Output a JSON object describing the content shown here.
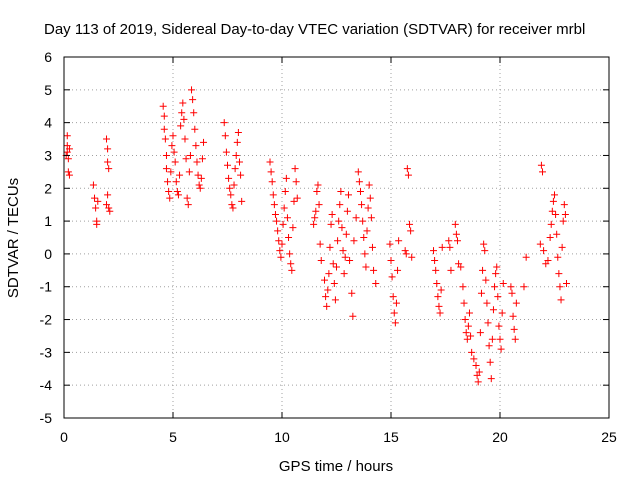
{
  "chart_data": {
    "type": "scatter",
    "title": "Day 113 of 2019, Sidereal Day-to-day VTEC variation (SDTVAR) for receiver mrbl",
    "xlabel": "GPS time / hours",
    "ylabel": "SDTVAR / TECUs",
    "xlim": [
      0,
      25
    ],
    "ylim": [
      -5,
      6
    ],
    "xticks": [
      "0",
      "5",
      "10",
      "15",
      "20",
      "25"
    ],
    "yticks": [
      "-5",
      "-4",
      "-3",
      "-2",
      "-1",
      "0",
      "1",
      "2",
      "3",
      "4",
      "5",
      "6"
    ],
    "grid": true,
    "marker": "+",
    "colors": {
      "points": "#ff0000",
      "frame": "#000000",
      "grid": "#a0a0a0"
    },
    "series": [
      {
        "name": "SDTVAR",
        "points": [
          [
            0.15,
            3.6
          ],
          [
            0.15,
            3.3
          ],
          [
            0.15,
            3.1
          ],
          [
            0.2,
            2.9
          ],
          [
            0.2,
            2.5
          ],
          [
            0.25,
            3.2
          ],
          [
            0.25,
            2.4
          ],
          [
            0.1,
            3.0
          ],
          [
            1.35,
            2.1
          ],
          [
            1.4,
            1.7
          ],
          [
            1.45,
            1.4
          ],
          [
            1.5,
            1.0
          ],
          [
            1.5,
            0.9
          ],
          [
            1.55,
            1.6
          ],
          [
            1.95,
            3.5
          ],
          [
            2.0,
            3.2
          ],
          [
            2.0,
            2.8
          ],
          [
            2.05,
            2.6
          ],
          [
            2.0,
            1.8
          ],
          [
            2.05,
            1.4
          ],
          [
            2.1,
            1.3
          ],
          [
            1.95,
            1.5
          ],
          [
            4.55,
            4.5
          ],
          [
            4.6,
            4.2
          ],
          [
            4.6,
            3.8
          ],
          [
            4.65,
            3.5
          ],
          [
            4.7,
            3.0
          ],
          [
            4.7,
            2.6
          ],
          [
            4.75,
            2.2
          ],
          [
            4.8,
            1.9
          ],
          [
            4.85,
            1.7
          ],
          [
            4.9,
            2.5
          ],
          [
            4.95,
            3.3
          ],
          [
            5.0,
            3.6
          ],
          [
            5.05,
            3.1
          ],
          [
            5.1,
            2.8
          ],
          [
            5.15,
            2.2
          ],
          [
            5.2,
            1.9
          ],
          [
            5.25,
            1.8
          ],
          [
            5.3,
            2.4
          ],
          [
            5.35,
            3.9
          ],
          [
            5.4,
            4.3
          ],
          [
            5.45,
            4.6
          ],
          [
            5.5,
            4.1
          ],
          [
            5.55,
            3.5
          ],
          [
            5.6,
            2.9
          ],
          [
            5.65,
            1.7
          ],
          [
            5.7,
            1.5
          ],
          [
            5.75,
            2.5
          ],
          [
            5.8,
            3.0
          ],
          [
            5.85,
            5.0
          ],
          [
            5.9,
            4.7
          ],
          [
            5.95,
            4.3
          ],
          [
            6.0,
            3.8
          ],
          [
            6.05,
            3.3
          ],
          [
            6.1,
            2.8
          ],
          [
            6.15,
            2.4
          ],
          [
            6.2,
            2.1
          ],
          [
            6.25,
            2.0
          ],
          [
            6.3,
            2.3
          ],
          [
            6.35,
            2.9
          ],
          [
            6.4,
            3.4
          ],
          [
            7.35,
            4.0
          ],
          [
            7.4,
            3.6
          ],
          [
            7.45,
            3.1
          ],
          [
            7.5,
            2.7
          ],
          [
            7.55,
            2.3
          ],
          [
            7.6,
            2.0
          ],
          [
            7.65,
            1.8
          ],
          [
            7.7,
            1.5
          ],
          [
            7.75,
            1.4
          ],
          [
            7.8,
            2.1
          ],
          [
            7.85,
            2.6
          ],
          [
            7.9,
            3.0
          ],
          [
            7.95,
            3.4
          ],
          [
            8.0,
            3.7
          ],
          [
            8.05,
            2.8
          ],
          [
            8.1,
            2.4
          ],
          [
            8.15,
            1.6
          ],
          [
            9.45,
            2.8
          ],
          [
            9.5,
            2.5
          ],
          [
            9.55,
            2.2
          ],
          [
            9.6,
            1.8
          ],
          [
            9.65,
            1.5
          ],
          [
            9.7,
            1.2
          ],
          [
            9.75,
            1.0
          ],
          [
            9.8,
            0.7
          ],
          [
            9.85,
            0.4
          ],
          [
            9.9,
            0.1
          ],
          [
            9.95,
            -0.1
          ],
          [
            10.0,
            0.3
          ],
          [
            10.05,
            0.9
          ],
          [
            10.1,
            1.4
          ],
          [
            10.15,
            1.9
          ],
          [
            10.2,
            2.3
          ],
          [
            10.25,
            1.1
          ],
          [
            10.3,
            0.5
          ],
          [
            10.35,
            0.0
          ],
          [
            10.4,
            -0.3
          ],
          [
            10.45,
            -0.5
          ],
          [
            10.5,
            0.8
          ],
          [
            10.55,
            1.6
          ],
          [
            10.6,
            2.6
          ],
          [
            10.65,
            2.2
          ],
          [
            10.7,
            1.7
          ],
          [
            11.45,
            0.9
          ],
          [
            11.5,
            1.1
          ],
          [
            11.55,
            1.3
          ],
          [
            11.6,
            1.9
          ],
          [
            11.65,
            2.1
          ],
          [
            11.7,
            1.5
          ],
          [
            11.75,
            0.3
          ],
          [
            11.8,
            -0.2
          ],
          [
            11.95,
            -0.8
          ],
          [
            12.0,
            -1.3
          ],
          [
            12.05,
            -1.6
          ],
          [
            12.1,
            -1.1
          ],
          [
            12.15,
            -0.6
          ],
          [
            12.2,
            0.2
          ],
          [
            12.25,
            0.9
          ],
          [
            12.3,
            1.2
          ],
          [
            12.35,
            -0.3
          ],
          [
            12.4,
            -0.9
          ],
          [
            12.45,
            -1.4
          ],
          [
            12.5,
            -0.4
          ],
          [
            12.55,
            0.4
          ],
          [
            12.6,
            1.0
          ],
          [
            12.65,
            1.5
          ],
          [
            12.7,
            1.9
          ],
          [
            12.75,
            0.8
          ],
          [
            12.8,
            0.1
          ],
          [
            12.85,
            -0.6
          ],
          [
            12.9,
            -0.1
          ],
          [
            12.95,
            0.6
          ],
          [
            13.0,
            1.3
          ],
          [
            13.05,
            1.8
          ],
          [
            13.1,
            -0.2
          ],
          [
            13.2,
            -1.2
          ],
          [
            13.25,
            -1.9
          ],
          [
            13.3,
            0.4
          ],
          [
            13.4,
            1.1
          ],
          [
            13.5,
            2.5
          ],
          [
            13.55,
            2.2
          ],
          [
            13.6,
            1.9
          ],
          [
            13.65,
            1.5
          ],
          [
            13.7,
            1.0
          ],
          [
            13.75,
            0.5
          ],
          [
            13.8,
            0.0
          ],
          [
            13.85,
            -0.4
          ],
          [
            13.9,
            0.7
          ],
          [
            13.95,
            1.4
          ],
          [
            14.0,
            2.1
          ],
          [
            14.05,
            1.7
          ],
          [
            14.1,
            1.1
          ],
          [
            14.15,
            0.2
          ],
          [
            14.2,
            -0.5
          ],
          [
            14.3,
            -0.9
          ],
          [
            14.95,
            0.3
          ],
          [
            15.0,
            -0.2
          ],
          [
            15.05,
            -0.7
          ],
          [
            15.1,
            -1.3
          ],
          [
            15.15,
            -1.8
          ],
          [
            15.2,
            -2.1
          ],
          [
            15.25,
            -1.5
          ],
          [
            15.3,
            -0.5
          ],
          [
            15.35,
            0.4
          ],
          [
            15.65,
            0.1
          ],
          [
            15.7,
            0.0
          ],
          [
            15.75,
            2.6
          ],
          [
            15.8,
            2.4
          ],
          [
            15.85,
            0.9
          ],
          [
            15.9,
            0.7
          ],
          [
            15.95,
            -0.1
          ],
          [
            16.95,
            0.1
          ],
          [
            17.0,
            -0.2
          ],
          [
            17.05,
            -0.5
          ],
          [
            17.1,
            -0.9
          ],
          [
            17.15,
            -1.3
          ],
          [
            17.2,
            -1.6
          ],
          [
            17.25,
            -1.8
          ],
          [
            17.3,
            -1.1
          ],
          [
            17.35,
            0.2
          ],
          [
            17.65,
            0.4
          ],
          [
            17.7,
            0.2
          ],
          [
            17.75,
            -0.5
          ],
          [
            17.95,
            0.9
          ],
          [
            18.0,
            0.6
          ],
          [
            18.05,
            0.4
          ],
          [
            18.1,
            -0.3
          ],
          [
            18.2,
            -0.4
          ],
          [
            18.3,
            -1.0
          ],
          [
            18.35,
            -1.5
          ],
          [
            18.4,
            -2.0
          ],
          [
            18.45,
            -2.4
          ],
          [
            18.5,
            -2.6
          ],
          [
            18.55,
            -2.2
          ],
          [
            18.6,
            -1.8
          ],
          [
            18.65,
            -2.5
          ],
          [
            18.7,
            -3.0
          ],
          [
            18.8,
            -3.2
          ],
          [
            18.9,
            -3.4
          ],
          [
            18.95,
            -3.7
          ],
          [
            19.0,
            -3.9
          ],
          [
            19.05,
            -3.6
          ],
          [
            19.1,
            -2.4
          ],
          [
            19.15,
            -1.2
          ],
          [
            19.2,
            -0.5
          ],
          [
            19.25,
            0.3
          ],
          [
            19.3,
            0.1
          ],
          [
            19.35,
            -0.8
          ],
          [
            19.4,
            -1.5
          ],
          [
            19.45,
            -2.1
          ],
          [
            19.5,
            -2.8
          ],
          [
            19.55,
            -3.3
          ],
          [
            19.6,
            -3.8
          ],
          [
            19.65,
            -2.6
          ],
          [
            19.7,
            -1.7
          ],
          [
            19.75,
            -1.0
          ],
          [
            19.8,
            -0.6
          ],
          [
            19.85,
            -0.4
          ],
          [
            19.9,
            -1.3
          ],
          [
            19.95,
            -2.2
          ],
          [
            20.0,
            -2.6
          ],
          [
            20.05,
            -2.9
          ],
          [
            20.1,
            -1.8
          ],
          [
            20.15,
            -0.9
          ],
          [
            20.5,
            -1.0
          ],
          [
            20.55,
            -1.2
          ],
          [
            20.6,
            -1.9
          ],
          [
            20.65,
            -2.3
          ],
          [
            20.7,
            -2.6
          ],
          [
            20.75,
            -1.5
          ],
          [
            21.1,
            -1.0
          ],
          [
            21.2,
            -0.1
          ],
          [
            21.85,
            0.3
          ],
          [
            21.9,
            2.7
          ],
          [
            21.95,
            2.5
          ],
          [
            22.0,
            0.1
          ],
          [
            22.1,
            -0.3
          ],
          [
            22.2,
            -0.2
          ],
          [
            22.3,
            0.5
          ],
          [
            22.35,
            0.9
          ],
          [
            22.4,
            1.3
          ],
          [
            22.45,
            1.6
          ],
          [
            22.5,
            1.8
          ],
          [
            22.55,
            1.2
          ],
          [
            22.6,
            0.6
          ],
          [
            22.65,
            -0.1
          ],
          [
            22.7,
            -0.6
          ],
          [
            22.75,
            -1.0
          ],
          [
            22.8,
            -1.4
          ],
          [
            22.85,
            0.2
          ],
          [
            22.9,
            1.0
          ],
          [
            22.95,
            1.5
          ],
          [
            23.0,
            1.2
          ],
          [
            23.05,
            -0.9
          ]
        ]
      }
    ]
  }
}
